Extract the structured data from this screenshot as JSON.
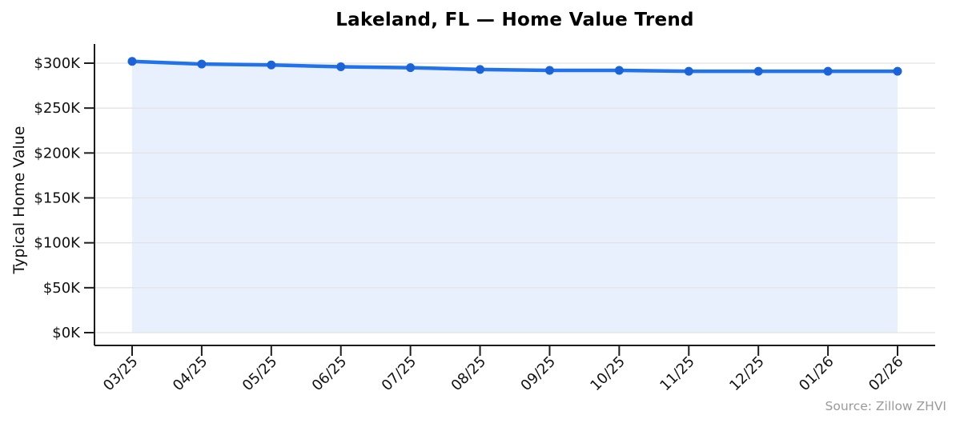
{
  "chart_data": {
    "type": "line",
    "title": "Lakeland, FL — Home Value Trend",
    "ylabel": "Typical Home Value",
    "xlabel": "",
    "source": "Source: Zillow ZHVI",
    "units": "USD thousands",
    "categories": [
      "03/25",
      "04/25",
      "05/25",
      "06/25",
      "07/25",
      "08/25",
      "09/25",
      "10/25",
      "11/25",
      "12/25",
      "01/26",
      "02/26"
    ],
    "series": [
      {
        "name": "Typical Home Value",
        "values": [
          302,
          299,
          298,
          296,
          295,
          293,
          292,
          292,
          291,
          291,
          291,
          291
        ]
      }
    ],
    "yticks": [
      {
        "value": 0,
        "label": "$0K"
      },
      {
        "value": 50,
        "label": "$50K"
      },
      {
        "value": 100,
        "label": "$100K"
      },
      {
        "value": 150,
        "label": "$150K"
      },
      {
        "value": 200,
        "label": "$200K"
      },
      {
        "value": 250,
        "label": "$250K"
      },
      {
        "value": 300,
        "label": "$300K"
      }
    ],
    "ylim": [
      0,
      321
    ],
    "grid": "horizontal",
    "legend": "none",
    "marker": "circle",
    "area_fill": true,
    "x_tick_rotation": 45,
    "colors": {
      "line": "#2273eb",
      "marker": "#1a63d8",
      "fill": "#e8f0fd",
      "grid": "#e3e3e6",
      "axis": "#1c1c1c",
      "tick_text": "#111111",
      "title": "#000000",
      "source": "#9a9a9a"
    }
  }
}
